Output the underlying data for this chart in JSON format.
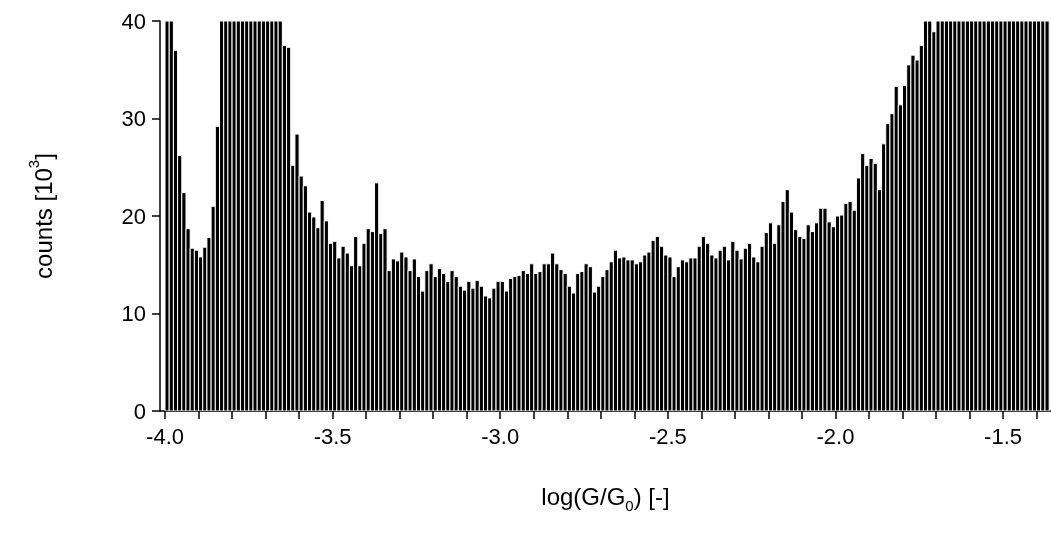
{
  "chart_data": {
    "type": "histogram",
    "xlabel": "log(G/G$_{0}$) [-]",
    "ylabel": "counts [10$^{3}$]",
    "color": "#000000",
    "xlim": [
      -4.015,
      -1.357
    ],
    "xticks": [
      {
        "value": -4,
        "label": "-4.0"
      },
      {
        "value": -3.9,
        "label": null
      },
      {
        "value": -3.8,
        "label": null
      },
      {
        "value": -3.7,
        "label": null
      },
      {
        "value": -3.6,
        "label": null
      },
      {
        "value": -3.5,
        "label": "-3.5"
      },
      {
        "value": -3.4,
        "label": null
      },
      {
        "value": -3.3,
        "label": null
      },
      {
        "value": -3.2,
        "label": null
      },
      {
        "value": -3.1,
        "label": null
      },
      {
        "value": -3,
        "label": "-3.0"
      },
      {
        "value": -2.9,
        "label": null
      },
      {
        "value": -2.8,
        "label": null
      },
      {
        "value": -2.7,
        "label": null
      },
      {
        "value": -2.6,
        "label": null
      },
      {
        "value": -2.5,
        "label": "-2.5"
      },
      {
        "value": -2.4,
        "label": null
      },
      {
        "value": -2.3,
        "label": null
      },
      {
        "value": -2.2,
        "label": null
      },
      {
        "value": -2.1,
        "label": null
      },
      {
        "value": -2,
        "label": "-2.0"
      },
      {
        "value": -1.9,
        "label": null
      },
      {
        "value": -1.8,
        "label": null
      },
      {
        "value": -1.7,
        "label": null
      },
      {
        "value": -1.6,
        "label": null
      },
      {
        "value": -1.5,
        "label": "-1.5"
      },
      {
        "value": -1.4,
        "label": null
      }
    ],
    "ylim": [
      0,
      40
    ],
    "yticks": [
      0,
      10,
      20,
      30,
      40
    ],
    "bins": [
      -4,
      -3.9875,
      -3.975,
      -3.9625,
      -3.95,
      -3.9375,
      -3.925,
      -3.9125,
      -3.9,
      -3.8875,
      -3.875,
      -3.8625,
      -3.85,
      -3.8375,
      -3.825,
      -3.8125,
      -3.8,
      -3.7875,
      -3.775,
      -3.7625,
      -3.75,
      -3.7375,
      -3.725,
      -3.7125,
      -3.7,
      -3.6875,
      -3.675,
      -3.6625,
      -3.65,
      -3.6375,
      -3.625,
      -3.6125,
      -3.6,
      -3.5875,
      -3.575,
      -3.5625,
      -3.55,
      -3.5375,
      -3.525,
      -3.5125,
      -3.5,
      -3.4875,
      -3.475,
      -3.4625,
      -3.45,
      -3.4375,
      -3.425,
      -3.4125,
      -3.4,
      -3.3875,
      -3.375,
      -3.3625,
      -3.35,
      -3.3375,
      -3.325,
      -3.3125,
      -3.3,
      -3.2875,
      -3.275,
      -3.2625,
      -3.25,
      -3.2375,
      -3.225,
      -3.2125,
      -3.2,
      -3.1875,
      -3.175,
      -3.1625,
      -3.15,
      -3.1375,
      -3.125,
      -3.1125,
      -3.1,
      -3.0875,
      -3.075,
      -3.0625,
      -3.05,
      -3.0375,
      -3.025,
      -3.0125,
      -3,
      -2.9875,
      -2.975,
      -2.9625,
      -2.95,
      -2.9375,
      -2.925,
      -2.9125,
      -2.9,
      -2.8875,
      -2.875,
      -2.8625,
      -2.85,
      -2.8375,
      -2.825,
      -2.8125,
      -2.8,
      -2.7875,
      -2.775,
      -2.7625,
      -2.75,
      -2.7375,
      -2.725,
      -2.7125,
      -2.7,
      -2.6875,
      -2.675,
      -2.6625,
      -2.65,
      -2.6375,
      -2.625,
      -2.6125,
      -2.6,
      -2.5875,
      -2.575,
      -2.5625,
      -2.55,
      -2.5375,
      -2.525,
      -2.5125,
      -2.5,
      -2.4875,
      -2.475,
      -2.4625,
      -2.45,
      -2.4375,
      -2.425,
      -2.4125,
      -2.4,
      -2.3875,
      -2.375,
      -2.3625,
      -2.35,
      -2.3375,
      -2.325,
      -2.3125,
      -2.3,
      -2.2875,
      -2.275,
      -2.2625,
      -2.25,
      -2.2375,
      -2.225,
      -2.2125,
      -2.2,
      -2.1875,
      -2.175,
      -2.1625,
      -2.15,
      -2.1375,
      -2.125,
      -2.1125,
      -2.1,
      -2.0875,
      -2.075,
      -2.0625,
      -2.05,
      -2.0375,
      -2.025,
      -2.0125,
      -2,
      -1.9875,
      -1.975,
      -1.9625,
      -1.95,
      -1.9375,
      -1.925,
      -1.9125,
      -1.9,
      -1.8875,
      -1.875,
      -1.8625,
      -1.85,
      -1.8375,
      -1.825,
      -1.8125,
      -1.8,
      -1.7875,
      -1.775,
      -1.7625,
      -1.75,
      -1.7375,
      -1.725,
      -1.7125,
      -1.7,
      -1.6875,
      -1.675,
      -1.6625,
      -1.65,
      -1.6375,
      -1.625,
      -1.6125,
      -1.6,
      -1.5875,
      -1.575,
      -1.5625,
      -1.55,
      -1.5375,
      -1.525,
      -1.5125,
      -1.5,
      -1.4875,
      -1.475,
      -1.4625,
      -1.45,
      -1.4375,
      -1.425,
      -1.4125,
      -1.4,
      -1.3875,
      -1.375,
      -1.3625
    ],
    "values": [
      40,
      40,
      37,
      26.2,
      22.4,
      18.7,
      16.7,
      16.5,
      15.8,
      16.8,
      17.8,
      21,
      29.2,
      40,
      40,
      40,
      40,
      40,
      40,
      40,
      40,
      40,
      40,
      40,
      40,
      40,
      40,
      40,
      37.5,
      37.3,
      25.2,
      28.4,
      24.1,
      23.1,
      20.4,
      19.9,
      18.8,
      21.6,
      19.5,
      17.2,
      17.4,
      15.7,
      16.9,
      16.2,
      14.9,
      17.9,
      14.9,
      17.2,
      18.7,
      18.4,
      23.4,
      18.2,
      18.7,
      14.4,
      15.6,
      15.4,
      16.3,
      15.8,
      14.4,
      15.6,
      13.8,
      12.3,
      14.4,
      15.1,
      13.8,
      14.6,
      14.1,
      13.3,
      14.4,
      13.8,
      12.8,
      12.4,
      13.3,
      12.6,
      13.4,
      12.8,
      11.8,
      11.6,
      12.6,
      13.3,
      13.3,
      12.3,
      13.6,
      13.8,
      13.9,
      14.4,
      14.1,
      15.1,
      14.1,
      14.3,
      15.1,
      15.1,
      16.2,
      15.1,
      14.5,
      14.1,
      12.8,
      12.1,
      14.1,
      14.3,
      15.1,
      14.8,
      12.2,
      12.8,
      13.8,
      14.5,
      15.3,
      16.5,
      15.7,
      15.8,
      15.5,
      15.5,
      15.1,
      15.3,
      16,
      16.3,
      17.5,
      17.9,
      16.9,
      16,
      15.8,
      13.8,
      14.8,
      15.5,
      15.3,
      15.7,
      15.7,
      16.9,
      17.9,
      17.2,
      16,
      15.7,
      16.5,
      16.9,
      15.5,
      17.4,
      16.5,
      15.6,
      16.7,
      17.2,
      15.8,
      15.3,
      16.9,
      18.3,
      19.3,
      17.2,
      19.1,
      21.5,
      22.7,
      20.4,
      18.6,
      17.9,
      17.7,
      19.1,
      18.4,
      19.3,
      20.8,
      20.8,
      19.4,
      18.9,
      20,
      20.1,
      21.3,
      21.5,
      20.6,
      23.9,
      26.4,
      25.2,
      25.9,
      25.4,
      22.7,
      27.4,
      29.5,
      30.5,
      33.3,
      31.4,
      33.4,
      35.5,
      36.5,
      36,
      37.5,
      40,
      40,
      38.9,
      40,
      40,
      40,
      40,
      40,
      40,
      40,
      40,
      40,
      40,
      40,
      40,
      40,
      40,
      40,
      40,
      40,
      40,
      40,
      40,
      40,
      40,
      40,
      40,
      40,
      40,
      40
    ]
  }
}
